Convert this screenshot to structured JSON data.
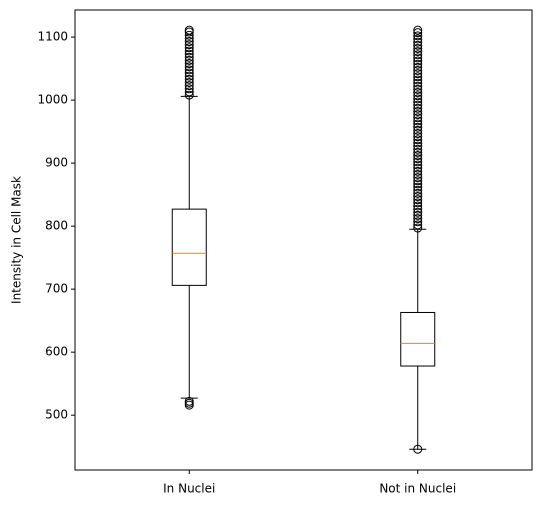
{
  "chart_data": {
    "type": "box",
    "ylabel": "Intensity in Cell Mask",
    "categories": [
      "In Nuclei",
      "Not in Nuclei"
    ],
    "boxes": [
      {
        "whislo": 527,
        "q1": 706,
        "med": 757,
        "q3": 827,
        "whishi": 1006,
        "fliers": [
          516,
          519,
          522,
          1008,
          1013,
          1018,
          1023,
          1028,
          1033,
          1038,
          1043,
          1048,
          1053,
          1058,
          1063,
          1068,
          1073,
          1078,
          1083,
          1088,
          1093,
          1098,
          1103,
          1108,
          1111
        ]
      },
      {
        "whislo": 446,
        "q1": 578,
        "med": 614,
        "q3": 663,
        "whishi": 795,
        "fliers": [
          446,
          797,
          802,
          807,
          812,
          817,
          822,
          827,
          832,
          837,
          842,
          847,
          852,
          857,
          862,
          867,
          872,
          877,
          882,
          887,
          892,
          897,
          902,
          907,
          912,
          917,
          922,
          927,
          932,
          937,
          942,
          947,
          952,
          957,
          962,
          967,
          972,
          977,
          982,
          987,
          992,
          997,
          1002,
          1007,
          1012,
          1017,
          1022,
          1027,
          1032,
          1037,
          1042,
          1047,
          1052,
          1057,
          1062,
          1067,
          1072,
          1077,
          1082,
          1087,
          1092,
          1097,
          1102,
          1107,
          1111
        ]
      }
    ],
    "box_color": "#000000",
    "median_color": "#ff7f0e",
    "ylim": [
      413,
      1143
    ],
    "yticks": [
      500,
      600,
      700,
      800,
      900,
      1000,
      1100
    ]
  }
}
